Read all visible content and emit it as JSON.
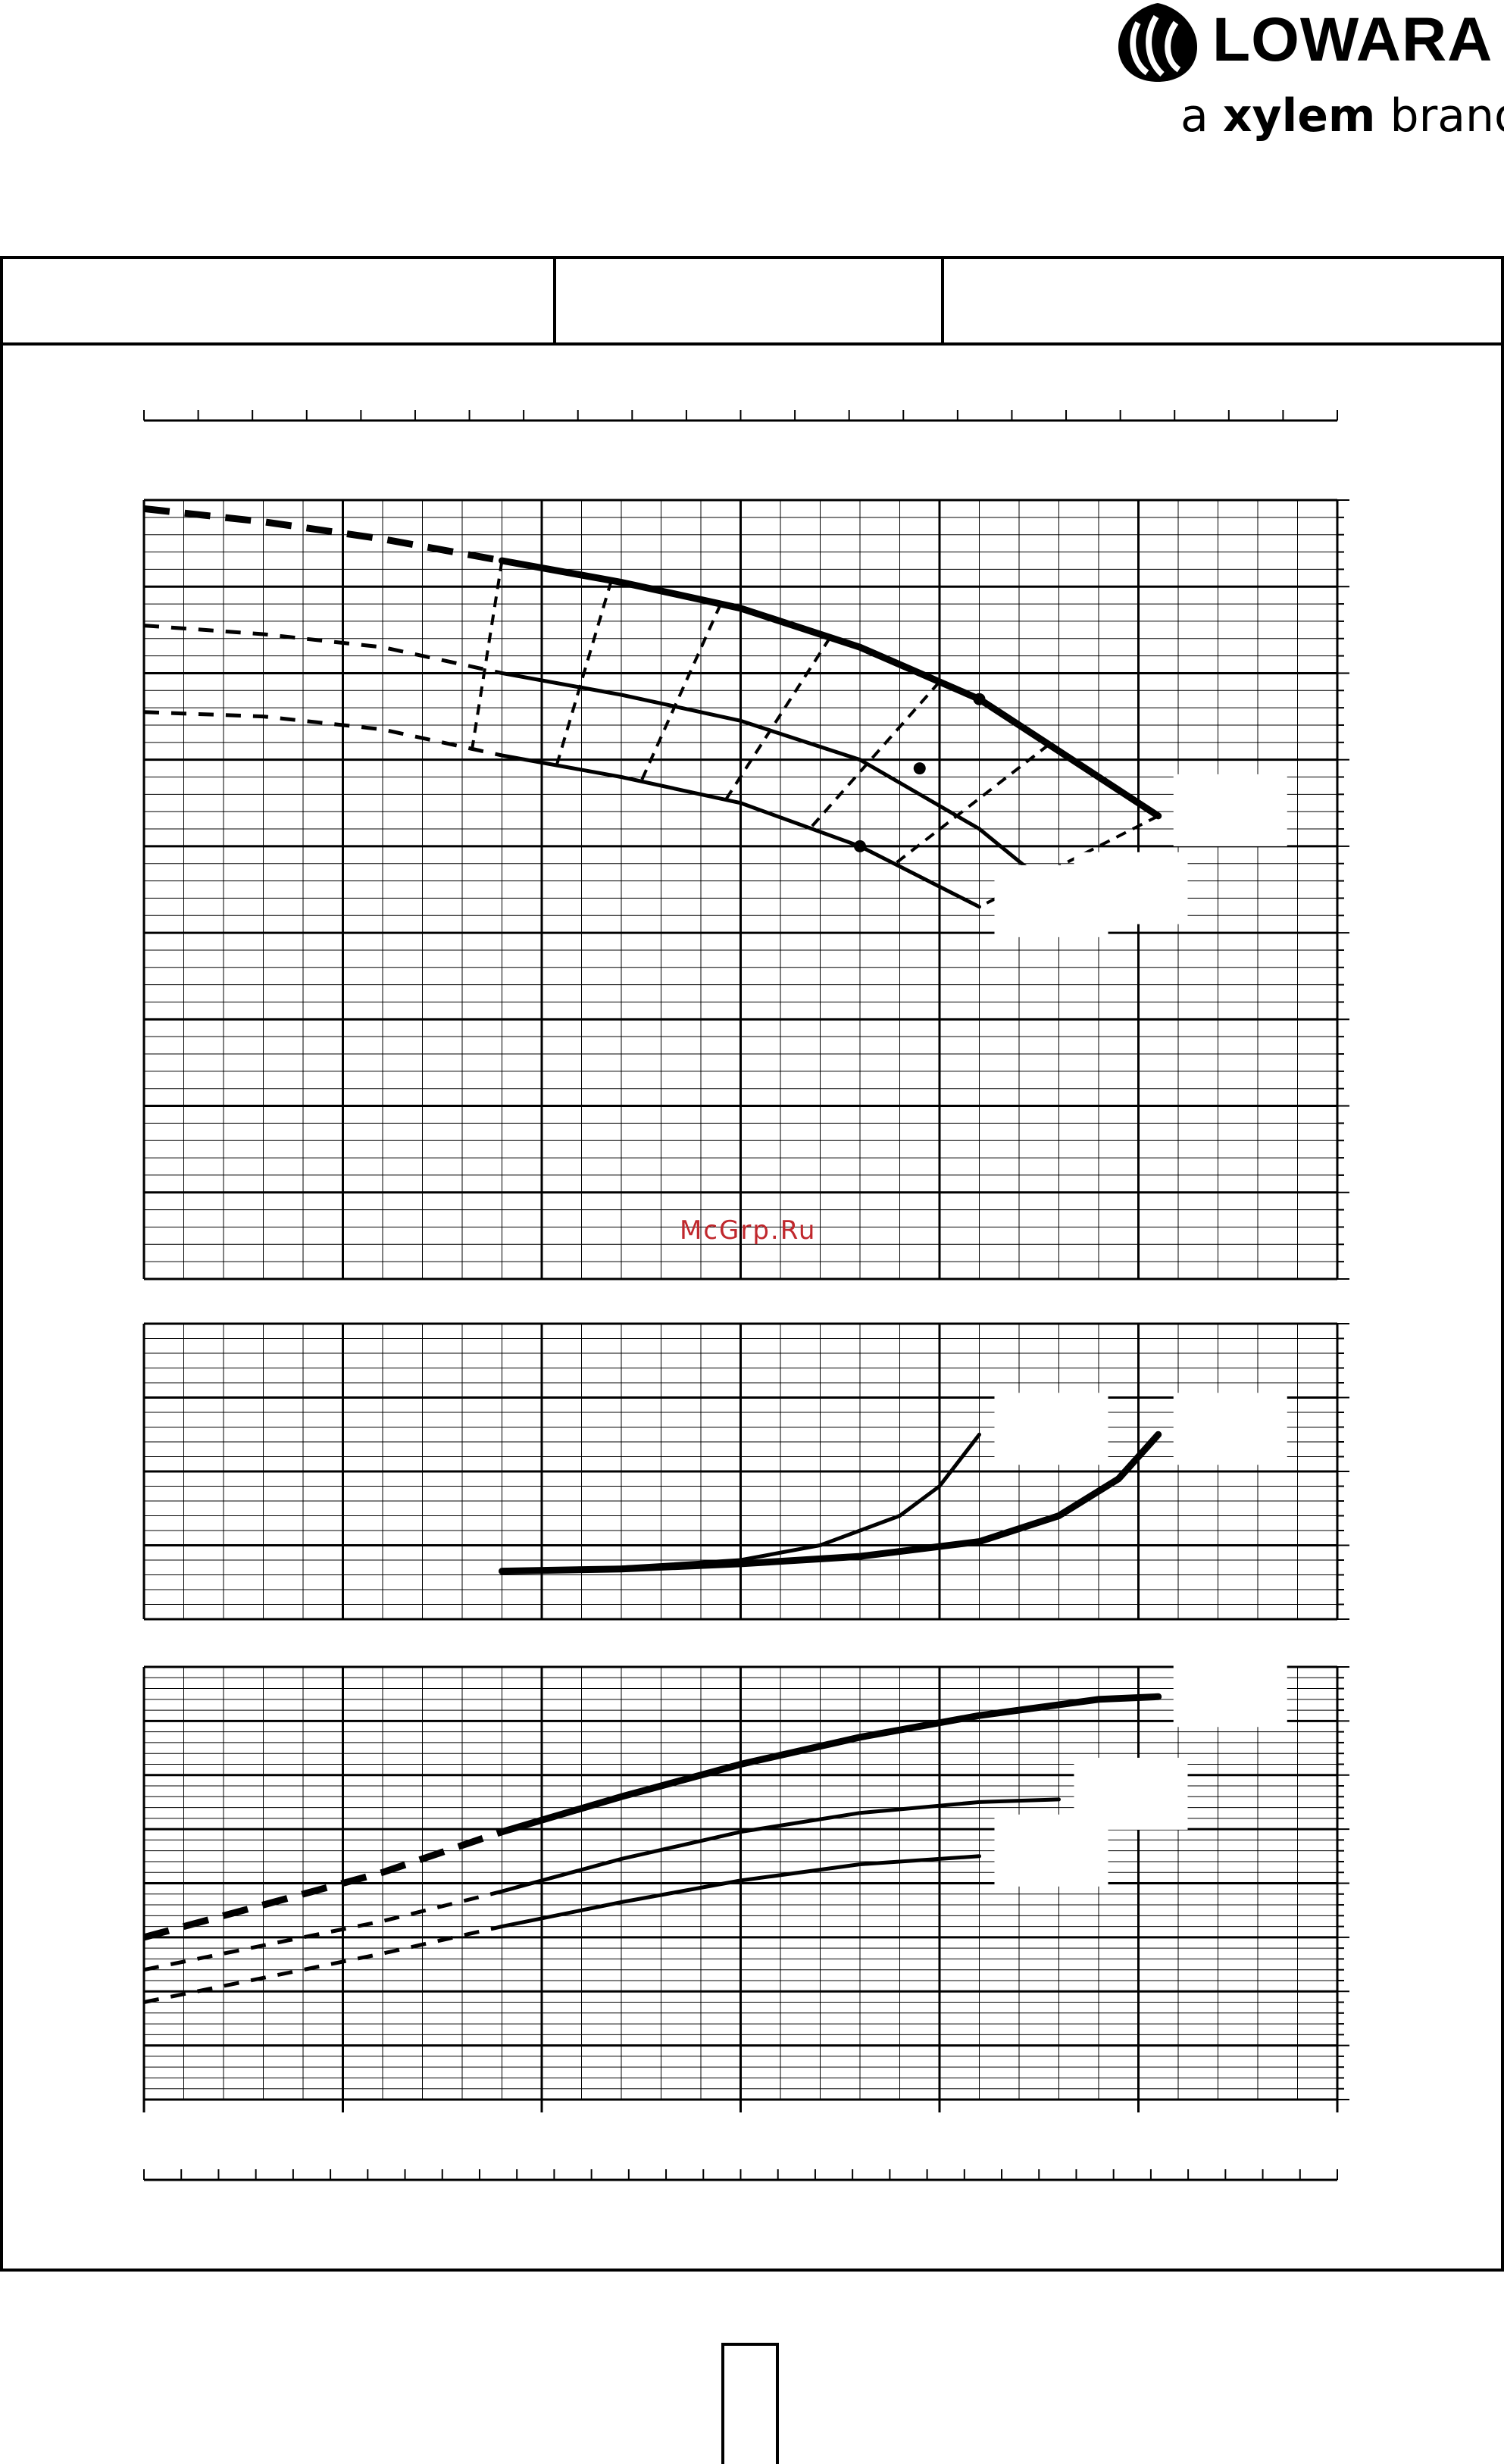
{
  "brand": {
    "name": "LOWARA",
    "tagline_prefix": "a ",
    "tagline_brand": "xylem",
    "tagline_suffix": " brand",
    "logo_icon": "lowara-drop-logo"
  },
  "header": {
    "cells": [
      "",
      "",
      ""
    ]
  },
  "watermark": "McGrp.Ru",
  "page_number": "",
  "colors": {
    "ink": "#000000",
    "watermark": "#c0282d",
    "label_mask": "#ffffff"
  },
  "chart_data": [
    {
      "type": "line",
      "name": "head-curves",
      "x": [
        0,
        6
      ],
      "ylim": [
        0,
        9
      ],
      "grid": true,
      "series": [
        {
          "weight": "bold",
          "dashed_x": [
            0,
            1.8
          ],
          "solid_x": [
            1.8,
            5.1
          ],
          "points": [
            [
              0,
              8.9
            ],
            [
              0.6,
              8.75
            ],
            [
              1.2,
              8.55
            ],
            [
              1.8,
              8.3
            ],
            [
              2.4,
              8.05
            ],
            [
              3,
              7.75
            ],
            [
              3.6,
              7.3
            ],
            [
              4.2,
              6.7
            ],
            [
              4.8,
              5.8
            ],
            [
              5.1,
              5.35
            ]
          ]
        },
        {
          "weight": "medium",
          "dashed_x": [
            0,
            1.8
          ],
          "solid_x": [
            1.8,
            4.6
          ],
          "points": [
            [
              0,
              7.55
            ],
            [
              0.6,
              7.45
            ],
            [
              1.2,
              7.3
            ],
            [
              1.8,
              7.0
            ],
            [
              2.4,
              6.75
            ],
            [
              3,
              6.45
            ],
            [
              3.6,
              6.0
            ],
            [
              4.2,
              5.2
            ],
            [
              4.6,
              4.45
            ]
          ]
        },
        {
          "weight": "medium",
          "dashed_x": [
            0,
            1.8
          ],
          "solid_x": [
            1.8,
            4.2
          ],
          "points": [
            [
              0,
              6.55
            ],
            [
              0.6,
              6.5
            ],
            [
              1.2,
              6.35
            ],
            [
              1.8,
              6.05
            ],
            [
              2.4,
              5.8
            ],
            [
              3,
              5.5
            ],
            [
              3.6,
              5.0
            ],
            [
              4.2,
              4.3
            ]
          ]
        }
      ],
      "iso_lines": 7,
      "marked_points": [
        [
          4.2,
          6.7
        ],
        [
          3.9,
          5.9
        ],
        [
          3.6,
          5.0
        ]
      ]
    },
    {
      "type": "line",
      "name": "npsh-curves",
      "x": [
        0,
        6
      ],
      "ylim": [
        0,
        4
      ],
      "grid": true,
      "series": [
        {
          "weight": "medium",
          "points": [
            [
              1.8,
              0.65
            ],
            [
              2.4,
              0.7
            ],
            [
              3,
              0.8
            ],
            [
              3.4,
              1.0
            ],
            [
              3.8,
              1.4
            ],
            [
              4.0,
              1.8
            ],
            [
              4.2,
              2.5
            ]
          ]
        },
        {
          "weight": "bold",
          "points": [
            [
              1.8,
              0.65
            ],
            [
              2.4,
              0.68
            ],
            [
              3,
              0.75
            ],
            [
              3.6,
              0.85
            ],
            [
              4.2,
              1.05
            ],
            [
              4.6,
              1.4
            ],
            [
              4.9,
              1.9
            ],
            [
              5.1,
              2.5
            ]
          ]
        }
      ]
    },
    {
      "type": "line",
      "name": "power-curves",
      "x": [
        0,
        6
      ],
      "ylim": [
        0,
        8
      ],
      "grid": true,
      "series": [
        {
          "weight": "bold",
          "dashed_x": [
            0,
            1.8
          ],
          "solid_x": [
            1.8,
            5.1
          ],
          "points": [
            [
              0,
              3.0
            ],
            [
              0.6,
              3.6
            ],
            [
              1.2,
              4.2
            ],
            [
              1.8,
              4.95
            ],
            [
              2.4,
              5.6
            ],
            [
              3,
              6.2
            ],
            [
              3.6,
              6.7
            ],
            [
              4.2,
              7.1
            ],
            [
              4.8,
              7.4
            ],
            [
              5.1,
              7.45
            ]
          ]
        },
        {
          "weight": "medium",
          "dashed_x": [
            0,
            1.8
          ],
          "solid_x": [
            1.8,
            4.6
          ],
          "points": [
            [
              0,
              2.4
            ],
            [
              0.6,
              2.85
            ],
            [
              1.2,
              3.3
            ],
            [
              1.8,
              3.85
            ],
            [
              2.4,
              4.45
            ],
            [
              3,
              4.95
            ],
            [
              3.6,
              5.3
            ],
            [
              4.2,
              5.5
            ],
            [
              4.6,
              5.55
            ]
          ]
        },
        {
          "weight": "medium",
          "dashed_x": [
            0,
            1.8
          ],
          "solid_x": [
            1.8,
            4.2
          ],
          "points": [
            [
              0,
              1.8
            ],
            [
              0.6,
              2.25
            ],
            [
              1.2,
              2.7
            ],
            [
              1.8,
              3.2
            ],
            [
              2.4,
              3.65
            ],
            [
              3,
              4.05
            ],
            [
              3.6,
              4.35
            ],
            [
              4.2,
              4.5
            ]
          ]
        }
      ]
    }
  ]
}
